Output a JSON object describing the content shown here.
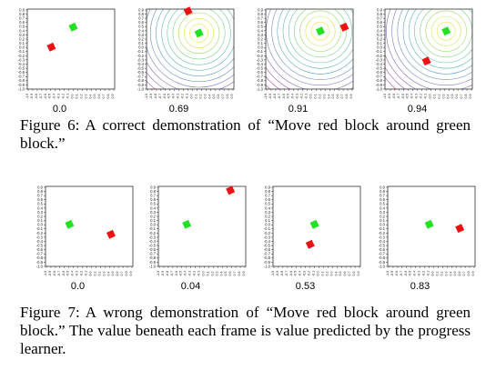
{
  "figure6": {
    "label": "Figure 6:",
    "caption": "A correct demonstration of “Move red block around green block.”",
    "frames": [
      {
        "value": "0.0",
        "contours": false,
        "green": [
          0.05,
          0.55
        ],
        "red": [
          -0.45,
          0.05
        ]
      },
      {
        "value": "0.69",
        "contours": true,
        "green": [
          0.2,
          0.4
        ],
        "red": [
          -0.05,
          0.95
        ]
      },
      {
        "value": "0.91",
        "contours": true,
        "green": [
          0.25,
          0.45
        ],
        "red": [
          0.8,
          0.55
        ]
      },
      {
        "value": "0.94",
        "contours": true,
        "green": [
          0.4,
          0.45
        ],
        "red": [
          -0.05,
          -0.3
        ]
      }
    ]
  },
  "figure7": {
    "label": "Figure 7:",
    "caption": "A wrong demonstration of “Move red block around green block.” The value beneath each frame is value predicted by the progress learner.",
    "frames": [
      {
        "value": "0.0",
        "contours": false,
        "green": [
          -0.45,
          0.05
        ],
        "red": [
          0.5,
          -0.2
        ]
      },
      {
        "value": "0.04",
        "contours": false,
        "green": [
          -0.35,
          0.05
        ],
        "red": [
          0.65,
          0.9
        ]
      },
      {
        "value": "0.53",
        "contours": false,
        "green": [
          -0.05,
          0.05
        ],
        "red": [
          -0.15,
          -0.45
        ]
      },
      {
        "value": "0.83",
        "contours": false,
        "green": [
          -0.05,
          0.05
        ],
        "red": [
          0.65,
          -0.05
        ]
      }
    ]
  },
  "axis": {
    "y_ticks": [
      "0.9",
      "0.8",
      "0.7",
      "0.6",
      "0.5",
      "0.4",
      "0.3",
      "0.2",
      "0.1",
      "0.0",
      "-0.1",
      "-0.2",
      "-0.3",
      "-0.4",
      "-0.5",
      "-0.6",
      "-0.7",
      "-0.8",
      "-0.9",
      "-1.0"
    ],
    "x_ticks": [
      "-1.0",
      "-0.9",
      "-0.8",
      "-0.7",
      "-0.6",
      "-0.5",
      "-0.4",
      "-0.3",
      "-0.2",
      "-0.1",
      "0.0",
      "0.1",
      "0.2",
      "0.3",
      "0.4",
      "0.5",
      "0.6",
      "0.7",
      "0.8",
      "0.9"
    ],
    "range": [
      -1.0,
      1.0
    ]
  },
  "colors": {
    "green": "#22e022",
    "red": "#ee1111",
    "axis": "#333333"
  }
}
